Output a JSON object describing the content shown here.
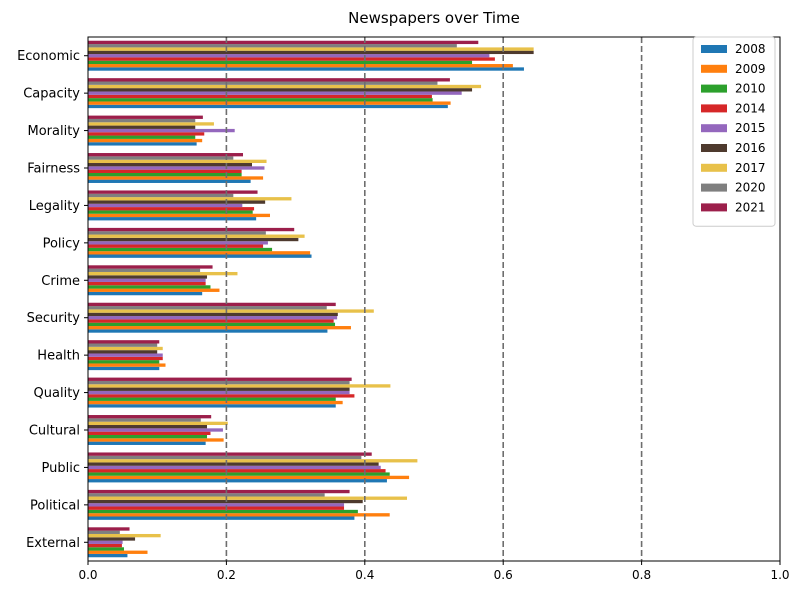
{
  "chart_data": {
    "type": "bar",
    "orientation": "horizontal",
    "title": "Newspapers over Time",
    "xlabel": "",
    "ylabel": "",
    "xlim": [
      0,
      1.0
    ],
    "xticks": [
      "0.0",
      "0.2",
      "0.4",
      "0.6",
      "0.8",
      "1.0"
    ],
    "reference_lines": [
      0.2,
      0.4,
      0.6,
      0.8
    ],
    "legend_position": "top-right",
    "grid": false,
    "categories": [
      "Economic",
      "Capacity",
      "Morality",
      "Fairness",
      "Legality",
      "Policy",
      "Crime",
      "Security",
      "Health",
      "Quality",
      "Cultural",
      "Public",
      "Political",
      "External"
    ],
    "series": [
      {
        "name": "2008",
        "color": "#1f77b4",
        "values": [
          0.63,
          0.52,
          0.157,
          0.235,
          0.243,
          0.323,
          0.165,
          0.346,
          0.103,
          0.358,
          0.17,
          0.432,
          0.385,
          0.057
        ]
      },
      {
        "name": "2009",
        "color": "#ff7f0e",
        "values": [
          0.614,
          0.524,
          0.165,
          0.253,
          0.263,
          0.321,
          0.19,
          0.38,
          0.112,
          0.368,
          0.196,
          0.464,
          0.436,
          0.086
        ]
      },
      {
        "name": "2010",
        "color": "#2ca02c",
        "values": [
          0.555,
          0.498,
          0.155,
          0.222,
          0.238,
          0.266,
          0.177,
          0.357,
          0.103,
          0.358,
          0.172,
          0.436,
          0.39,
          0.052
        ]
      },
      {
        "name": "2014",
        "color": "#d62728",
        "values": [
          0.588,
          0.497,
          0.168,
          0.222,
          0.24,
          0.253,
          0.17,
          0.355,
          0.108,
          0.385,
          0.177,
          0.43,
          0.37,
          0.049
        ]
      },
      {
        "name": "2015",
        "color": "#9467bd",
        "values": [
          0.58,
          0.54,
          0.212,
          0.255,
          0.223,
          0.26,
          0.17,
          0.36,
          0.108,
          0.378,
          0.195,
          0.423,
          0.37,
          0.05
        ]
      },
      {
        "name": "2016",
        "color": "#4e3a2e",
        "values": [
          0.644,
          0.555,
          0.155,
          0.237,
          0.256,
          0.304,
          0.172,
          0.361,
          0.1,
          0.378,
          0.172,
          0.42,
          0.397,
          0.068
        ]
      },
      {
        "name": "2017",
        "color": "#e8c14a",
        "values": [
          0.644,
          0.568,
          0.182,
          0.258,
          0.294,
          0.313,
          0.216,
          0.413,
          0.108,
          0.437,
          0.202,
          0.476,
          0.461,
          0.105
        ]
      },
      {
        "name": "2020",
        "color": "#7f7f7f",
        "values": [
          0.533,
          0.505,
          0.155,
          0.21,
          0.21,
          0.257,
          0.162,
          0.345,
          0.1,
          0.378,
          0.163,
          0.395,
          0.342,
          0.046
        ]
      },
      {
        "name": "2021",
        "color": "#9c1f4b",
        "values": [
          0.564,
          0.523,
          0.166,
          0.224,
          0.245,
          0.298,
          0.18,
          0.358,
          0.103,
          0.381,
          0.178,
          0.41,
          0.378,
          0.06
        ]
      }
    ]
  }
}
